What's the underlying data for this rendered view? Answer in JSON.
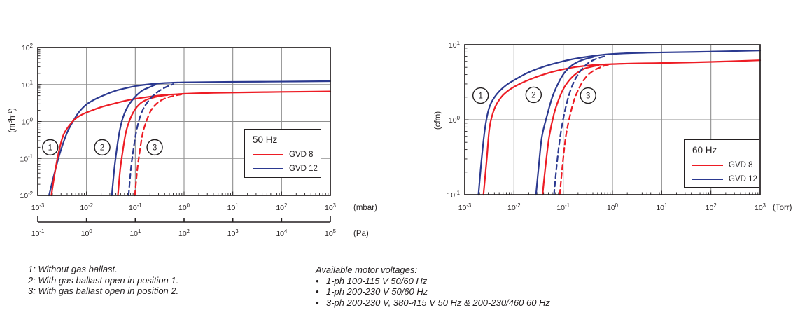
{
  "palette": {
    "gvd8": "#ed1c24",
    "gvd12": "#2b3990",
    "grid": "#8f8f8f",
    "axis": "#231f20",
    "text": "#231f20",
    "background": "#ffffff"
  },
  "footnotes": {
    "lines": [
      "1: Without gas ballast.",
      "2: With gas ballast open in position 1.",
      "3: With gas ballast open in position 2."
    ]
  },
  "motor_voltages": {
    "heading": "Available motor voltages:",
    "bullet": "•",
    "items": [
      "1-ph 100-115 V 50/60 Hz",
      "1-ph 200-230 V 50/60 Hz",
      "3-ph 200-230 V, 380-415 V 50 Hz & 200-230/460 60 Hz"
    ]
  },
  "chart_data": [
    {
      "id": "50hz",
      "type": "line",
      "title": "50 Hz pumping speed curves",
      "grid": true,
      "legend": {
        "title": "50 Hz",
        "position": "inside lower right",
        "entries": [
          {
            "label": "GVD 8",
            "color": "#ed1c24"
          },
          {
            "label": "GVD 12",
            "color": "#2b3990"
          }
        ]
      },
      "x_axis": {
        "unit": "(mbar)",
        "scale": "log",
        "range": [
          0.001,
          1000
        ],
        "tick_exponents": [
          -3,
          -2,
          -1,
          0,
          1,
          2,
          3
        ]
      },
      "y_axis": {
        "unit_text": "(m³h⁻¹)",
        "unit_parts": [
          {
            "t": "(m"
          },
          {
            "sup": "3"
          },
          {
            "t": "h"
          },
          {
            "sup": "-1"
          },
          {
            "t": ")"
          }
        ],
        "scale": "log",
        "range": [
          0.01,
          100
        ],
        "tick_exponents": [
          -2,
          -1,
          0,
          1,
          2
        ]
      },
      "secondary_x_axis": {
        "unit": "(Pa)",
        "scale": "log",
        "tick_exponents": [
          -1,
          0,
          1,
          2,
          3,
          4,
          5
        ]
      },
      "annotations": [
        {
          "label": "1",
          "x": 0.0018,
          "y": 0.2
        },
        {
          "label": "2",
          "x": 0.021,
          "y": 0.2
        },
        {
          "label": "3",
          "x": 0.25,
          "y": 0.2
        }
      ],
      "series": [
        {
          "id": "gvd12-no-ballast",
          "name": "GVD 12 (1: without gas ballast)",
          "color": "#2b3990",
          "line_style": "solid",
          "points": [
            [
              0.0017,
              0.01
            ],
            [
              0.0023,
              0.05
            ],
            [
              0.0029,
              0.15
            ],
            [
              0.004,
              0.5
            ],
            [
              0.0055,
              1.1
            ],
            [
              0.007,
              1.8
            ],
            [
              0.01,
              2.9
            ],
            [
              0.015,
              4.0
            ],
            [
              0.025,
              5.4
            ],
            [
              0.04,
              6.8
            ],
            [
              0.07,
              8.2
            ],
            [
              0.12,
              9.4
            ],
            [
              0.25,
              10.5
            ],
            [
              0.5,
              11.1
            ],
            [
              1,
              11.4
            ],
            [
              10,
              11.8
            ],
            [
              100,
              12.0
            ],
            [
              1000,
              12.3
            ]
          ]
        },
        {
          "id": "gvd8-no-ballast",
          "name": "GVD 8 (1: without gas ballast)",
          "color": "#ed1c24",
          "line_style": "solid",
          "points": [
            [
              0.0019,
              0.01
            ],
            [
              0.0023,
              0.05
            ],
            [
              0.0027,
              0.15
            ],
            [
              0.0034,
              0.45
            ],
            [
              0.005,
              0.95
            ],
            [
              0.0065,
              1.3
            ],
            [
              0.009,
              1.65
            ],
            [
              0.013,
              2.0
            ],
            [
              0.02,
              2.45
            ],
            [
              0.035,
              3.0
            ],
            [
              0.06,
              3.6
            ],
            [
              0.1,
              4.1
            ],
            [
              0.2,
              4.7
            ],
            [
              0.4,
              5.2
            ],
            [
              1,
              5.6
            ],
            [
              3,
              5.9
            ],
            [
              10,
              6.05
            ],
            [
              100,
              6.3
            ],
            [
              1000,
              6.5
            ]
          ]
        },
        {
          "id": "gvd12-ballast-1",
          "name": "GVD 12 (2: gas ballast position 1)",
          "color": "#2b3990",
          "line_style": "solid",
          "points": [
            [
              0.033,
              0.01
            ],
            [
              0.037,
              0.05
            ],
            [
              0.041,
              0.15
            ],
            [
              0.047,
              0.5
            ],
            [
              0.055,
              1.2
            ],
            [
              0.066,
              2.2
            ],
            [
              0.084,
              3.6
            ],
            [
              0.108,
              5.2
            ],
            [
              0.14,
              6.9
            ],
            [
              0.19,
              8.3
            ],
            [
              0.26,
              9.9
            ]
          ]
        },
        {
          "id": "gvd8-ballast-1",
          "name": "GVD 8 (2: gas ballast position 1)",
          "color": "#ed1c24",
          "line_style": "solid",
          "points": [
            [
              0.044,
              0.01
            ],
            [
              0.049,
              0.05
            ],
            [
              0.055,
              0.15
            ],
            [
              0.064,
              0.5
            ],
            [
              0.077,
              1.1
            ],
            [
              0.096,
              2.0
            ],
            [
              0.124,
              3.0
            ],
            [
              0.165,
              3.8
            ],
            [
              0.23,
              4.4
            ],
            [
              0.33,
              4.9
            ],
            [
              0.46,
              5.2
            ]
          ]
        },
        {
          "id": "gvd12-ballast-2",
          "name": "GVD 12 (3: gas ballast position 2)",
          "color": "#2b3990",
          "line_style": "dashed",
          "points": [
            [
              0.073,
              0.01
            ],
            [
              0.081,
              0.05
            ],
            [
              0.09,
              0.15
            ],
            [
              0.104,
              0.5
            ],
            [
              0.122,
              1.2
            ],
            [
              0.146,
              2.2
            ],
            [
              0.186,
              3.6
            ],
            [
              0.24,
              5.2
            ],
            [
              0.32,
              6.9
            ],
            [
              0.43,
              8.6
            ],
            [
              0.6,
              10.2
            ]
          ]
        },
        {
          "id": "gvd8-ballast-2",
          "name": "GVD 8 (3: gas ballast position 2)",
          "color": "#ed1c24",
          "line_style": "dashed",
          "points": [
            [
              0.098,
              0.01
            ],
            [
              0.11,
              0.05
            ],
            [
              0.123,
              0.15
            ],
            [
              0.143,
              0.5
            ],
            [
              0.173,
              1.1
            ],
            [
              0.21,
              2.0
            ],
            [
              0.27,
              3.0
            ],
            [
              0.36,
              3.9
            ],
            [
              0.5,
              4.6
            ],
            [
              0.69,
              5.1
            ],
            [
              0.98,
              5.5
            ]
          ]
        }
      ]
    },
    {
      "id": "60hz",
      "type": "line",
      "title": "60 Hz pumping speed curves",
      "grid": true,
      "legend": {
        "title": "60 Hz",
        "position": "inside lower right",
        "entries": [
          {
            "label": "GVD 8",
            "color": "#ed1c24"
          },
          {
            "label": "GVD 12",
            "color": "#2b3990"
          }
        ]
      },
      "x_axis": {
        "unit": "(Torr)",
        "scale": "log",
        "range": [
          0.001,
          1000
        ],
        "tick_exponents": [
          -3,
          -2,
          -1,
          0,
          1,
          2,
          3
        ]
      },
      "y_axis": {
        "unit_text": "(cfm)",
        "unit_parts": [
          {
            "t": "(cfm)"
          }
        ],
        "scale": "log",
        "range": [
          0.1,
          10
        ],
        "tick_exponents": [
          -1,
          0,
          1
        ]
      },
      "annotations": [
        {
          "label": "1",
          "x": 0.0021,
          "y": 2.1
        },
        {
          "label": "2",
          "x": 0.025,
          "y": 2.15
        },
        {
          "label": "3",
          "x": 0.32,
          "y": 2.1
        }
      ],
      "series": [
        {
          "id": "gvd12-no-ballast",
          "name": "GVD 12 (1: without gas ballast)",
          "color": "#2b3990",
          "line_style": "solid",
          "points": [
            [
              0.0019,
              0.1
            ],
            [
              0.0022,
              0.3
            ],
            [
              0.0026,
              0.8
            ],
            [
              0.0032,
              1.5
            ],
            [
              0.0045,
              2.2
            ],
            [
              0.007,
              2.9
            ],
            [
              0.012,
              3.6
            ],
            [
              0.02,
              4.3
            ],
            [
              0.04,
              5.1
            ],
            [
              0.08,
              5.8
            ],
            [
              0.15,
              6.4
            ],
            [
              0.3,
              6.9
            ],
            [
              0.7,
              7.4
            ],
            [
              2,
              7.7
            ],
            [
              10,
              7.9
            ],
            [
              100,
              8.1
            ],
            [
              1000,
              8.4
            ]
          ]
        },
        {
          "id": "gvd8-no-ballast",
          "name": "GVD 8 (1: without gas ballast)",
          "color": "#ed1c24",
          "line_style": "solid",
          "points": [
            [
              0.0024,
              0.1
            ],
            [
              0.0028,
              0.3
            ],
            [
              0.0032,
              0.8
            ],
            [
              0.004,
              1.4
            ],
            [
              0.0055,
              2.0
            ],
            [
              0.008,
              2.5
            ],
            [
              0.013,
              3.0
            ],
            [
              0.025,
              3.6
            ],
            [
              0.05,
              4.2
            ],
            [
              0.1,
              4.7
            ],
            [
              0.2,
              5.1
            ],
            [
              0.5,
              5.4
            ],
            [
              2,
              5.6
            ],
            [
              10,
              5.7
            ],
            [
              100,
              5.9
            ],
            [
              1000,
              6.2
            ]
          ]
        },
        {
          "id": "gvd12-ballast-1",
          "name": "GVD 12 (2: gas ballast position 1)",
          "color": "#2b3990",
          "line_style": "solid",
          "points": [
            [
              0.028,
              0.1
            ],
            [
              0.032,
              0.25
            ],
            [
              0.037,
              0.6
            ],
            [
              0.048,
              1.2
            ],
            [
              0.06,
              2.0
            ],
            [
              0.078,
              3.0
            ],
            [
              0.105,
              4.2
            ],
            [
              0.15,
              5.3
            ],
            [
              0.22,
              6.1
            ],
            [
              0.32,
              6.6
            ],
            [
              0.42,
              6.9
            ]
          ]
        },
        {
          "id": "gvd8-ballast-1",
          "name": "GVD 8 (2: gas ballast position 1)",
          "color": "#ed1c24",
          "line_style": "solid",
          "points": [
            [
              0.038,
              0.1
            ],
            [
              0.044,
              0.25
            ],
            [
              0.052,
              0.6
            ],
            [
              0.065,
              1.2
            ],
            [
              0.082,
              1.9
            ],
            [
              0.105,
              2.7
            ],
            [
              0.14,
              3.5
            ],
            [
              0.19,
              4.2
            ],
            [
              0.27,
              4.8
            ],
            [
              0.38,
              5.1
            ],
            [
              0.52,
              5.3
            ]
          ]
        },
        {
          "id": "gvd12-ballast-2",
          "name": "GVD 12 (3: gas ballast position 2)",
          "color": "#2b3990",
          "line_style": "dashed",
          "points": [
            [
              0.065,
              0.1
            ],
            [
              0.074,
              0.25
            ],
            [
              0.087,
              0.6
            ],
            [
              0.105,
              1.2
            ],
            [
              0.13,
              2.1
            ],
            [
              0.165,
              3.2
            ],
            [
              0.22,
              4.4
            ],
            [
              0.3,
              5.5
            ],
            [
              0.42,
              6.3
            ],
            [
              0.58,
              6.8
            ],
            [
              0.75,
              7.1
            ]
          ]
        },
        {
          "id": "gvd8-ballast-2",
          "name": "GVD 8 (3: gas ballast position 2)",
          "color": "#ed1c24",
          "line_style": "dashed",
          "points": [
            [
              0.085,
              0.1
            ],
            [
              0.097,
              0.25
            ],
            [
              0.113,
              0.6
            ],
            [
              0.14,
              1.2
            ],
            [
              0.17,
              1.9
            ],
            [
              0.22,
              2.8
            ],
            [
              0.29,
              3.7
            ],
            [
              0.39,
              4.4
            ],
            [
              0.53,
              4.9
            ],
            [
              0.72,
              5.3
            ],
            [
              0.92,
              5.5
            ]
          ]
        }
      ]
    }
  ]
}
